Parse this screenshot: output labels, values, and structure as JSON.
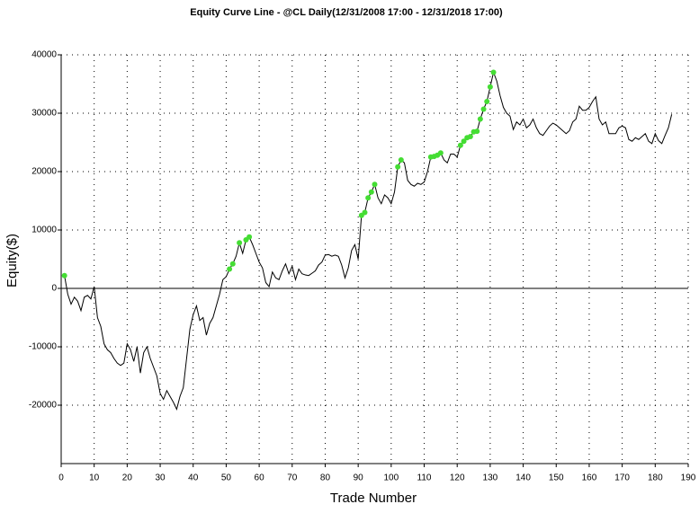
{
  "chart_data": {
    "type": "line",
    "title": "Equity Curve Line - @CL Daily(12/31/2008 17:00 - 12/31/2018 17:00)",
    "x_label": "Trade Number",
    "y_label": "Equity($)",
    "xlim": [
      0,
      190
    ],
    "ylim": [
      -30000,
      40000
    ],
    "xticks": [
      0,
      10,
      20,
      30,
      40,
      50,
      60,
      70,
      80,
      90,
      100,
      110,
      120,
      130,
      140,
      150,
      160,
      170,
      180,
      190
    ],
    "yticks": [
      -20000,
      -10000,
      0,
      10000,
      20000,
      30000,
      40000
    ],
    "grid": true,
    "zero_line": true,
    "x": [
      1,
      2,
      3,
      4,
      5,
      6,
      7,
      8,
      9,
      10,
      11,
      12,
      13,
      14,
      15,
      16,
      17,
      18,
      19,
      20,
      21,
      22,
      23,
      24,
      25,
      26,
      27,
      28,
      29,
      30,
      31,
      32,
      33,
      34,
      35,
      36,
      37,
      38,
      39,
      40,
      41,
      42,
      43,
      44,
      45,
      46,
      47,
      48,
      49,
      50,
      51,
      52,
      53,
      54,
      55,
      56,
      57,
      58,
      59,
      60,
      61,
      62,
      63,
      64,
      65,
      66,
      67,
      68,
      69,
      70,
      71,
      72,
      73,
      74,
      75,
      76,
      77,
      78,
      79,
      80,
      81,
      82,
      83,
      84,
      85,
      86,
      87,
      88,
      89,
      90,
      91,
      92,
      93,
      94,
      95,
      96,
      97,
      98,
      99,
      100,
      101,
      102,
      103,
      104,
      105,
      106,
      107,
      108,
      109,
      110,
      111,
      112,
      113,
      114,
      115,
      116,
      117,
      118,
      119,
      120,
      121,
      122,
      123,
      124,
      125,
      126,
      127,
      128,
      129,
      130,
      131,
      132,
      133,
      134,
      135,
      136,
      137,
      138,
      139,
      140,
      141,
      142,
      143,
      144,
      145,
      146,
      147,
      148,
      149,
      150,
      151,
      152,
      153,
      154,
      155,
      156,
      157,
      158,
      159,
      160,
      161,
      162,
      163,
      164,
      165,
      166,
      167,
      168,
      169,
      170,
      171,
      172,
      173,
      174,
      175,
      176,
      177,
      178,
      179,
      180,
      181,
      182,
      183,
      184,
      185
    ],
    "series": [
      {
        "style": "line",
        "color": "#000000",
        "values": [
          2200,
          -1000,
          -2700,
          -1500,
          -2200,
          -3800,
          -1500,
          -1200,
          -1800,
          300,
          -5000,
          -6500,
          -9500,
          -10500,
          -11000,
          -12000,
          -12800,
          -13200,
          -12800,
          -9500,
          -10500,
          -12500,
          -10000,
          -14500,
          -11000,
          -10000,
          -12000,
          -13500,
          -15000,
          -18000,
          -19000,
          -17500,
          -18500,
          -19500,
          -20700,
          -18500,
          -17000,
          -12000,
          -7000,
          -4500,
          -3000,
          -5500,
          -5000,
          -8000,
          -6000,
          -5000,
          -3000,
          -1000,
          1500,
          2000,
          3300,
          4200,
          5500,
          7800,
          6000,
          8300,
          8800,
          7500,
          6000,
          4500,
          3500,
          1000,
          300,
          2800,
          1800,
          1500,
          3000,
          4200,
          2500,
          3800,
          1500,
          3300,
          2500,
          2300,
          2200,
          2600,
          3000,
          4000,
          4500,
          5700,
          5800,
          5500,
          5700,
          5500,
          4000,
          1800,
          3500,
          6500,
          7500,
          5000,
          12500,
          13000,
          15500,
          16500,
          17800,
          15500,
          14500,
          16000,
          15500,
          14500,
          16500,
          20800,
          22000,
          21500,
          18500,
          17800,
          17500,
          18000,
          17800,
          18200,
          20000,
          22500,
          22600,
          22800,
          23200,
          22000,
          21500,
          23000,
          23000,
          22500,
          24500,
          25200,
          25800,
          26000,
          26800,
          26900,
          29000,
          30700,
          32000,
          34500,
          37000,
          35500,
          33000,
          31000,
          30000,
          29500,
          27200,
          28500,
          28000,
          29000,
          27500,
          28000,
          29000,
          27500,
          26500,
          26200,
          27000,
          27800,
          28300,
          28000,
          27500,
          27000,
          26500,
          27000,
          28500,
          29000,
          31200,
          30500,
          30500,
          31000,
          32000,
          32800,
          29000,
          28000,
          28500,
          26500,
          26500,
          26500,
          27500,
          27800,
          27500,
          25500,
          25200,
          25800,
          25500,
          26000,
          26500,
          25200,
          24800,
          26500,
          25300,
          24800,
          26200,
          27500,
          29800
        ]
      },
      {
        "style": "markers",
        "color": "#44dd33",
        "x": [
          1,
          51,
          52,
          54,
          56,
          57,
          91,
          92,
          93,
          94,
          95,
          102,
          103,
          112,
          113,
          114,
          115,
          121,
          122,
          123,
          124,
          125,
          126,
          127,
          128,
          129,
          130,
          131
        ],
        "values": [
          2200,
          3300,
          4200,
          7800,
          8300,
          8800,
          12500,
          13000,
          15500,
          16500,
          17800,
          20800,
          22000,
          22500,
          22600,
          22800,
          23200,
          24500,
          25200,
          25800,
          26000,
          26800,
          26900,
          29000,
          30700,
          32000,
          34500,
          37000
        ]
      }
    ]
  }
}
